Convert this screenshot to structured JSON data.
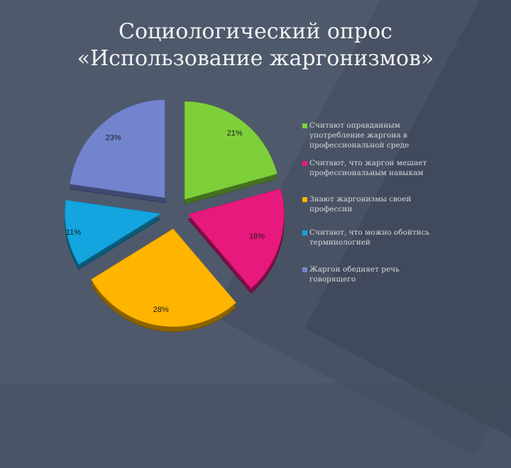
{
  "title": {
    "line1": "Социологический опрос",
    "line2": "«Использование жаргонизмов»"
  },
  "chart_data": {
    "type": "pie",
    "title": "Социологический опрос «Использование жаргонизмов»",
    "legend_position": "right",
    "start_angle_deg": 90,
    "slices": [
      {
        "name": "Считают оправданным употребление жаргона в профессиональной среде",
        "value": 21,
        "label": "21%",
        "color": "#7ed03a"
      },
      {
        "name": "Считают, что жаргон мешает профессиональным навыкам",
        "value": 18,
        "label": "18%",
        "color": "#e8197c"
      },
      {
        "name": "Знают жаргонизмы своей профессии",
        "value": 28,
        "label": "28%",
        "color": "#ffb400"
      },
      {
        "name": "Считают, что можно обойтись терминологией",
        "value": 11,
        "label": "11%",
        "color": "#12a5df"
      },
      {
        "name": "Жаргон обедняет речь говорящего",
        "value": 23,
        "label": "23%",
        "color": "#7384cf"
      }
    ]
  }
}
